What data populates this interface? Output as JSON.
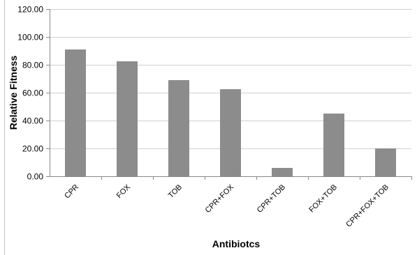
{
  "chart_data": {
    "type": "bar",
    "title": "",
    "xlabel": "Antibiotcs",
    "ylabel": "Relative Fitness",
    "categories": [
      "CPR",
      "FOX",
      "TOB",
      "CPR+FOX",
      "CPR+TOB",
      "FOX+TOB",
      "CPR+FOX+TOB"
    ],
    "values": [
      91,
      82.5,
      69,
      62.5,
      6,
      45,
      20
    ],
    "ylim": [
      0,
      120
    ],
    "yticks": [
      "0.00",
      "20.00",
      "40.00",
      "60.00",
      "80.00",
      "100.00",
      "120.00"
    ],
    "grid": true,
    "bar_color": "#8c8c8c",
    "grid_color": "#d0d0d0",
    "axis_color": "#888888"
  }
}
